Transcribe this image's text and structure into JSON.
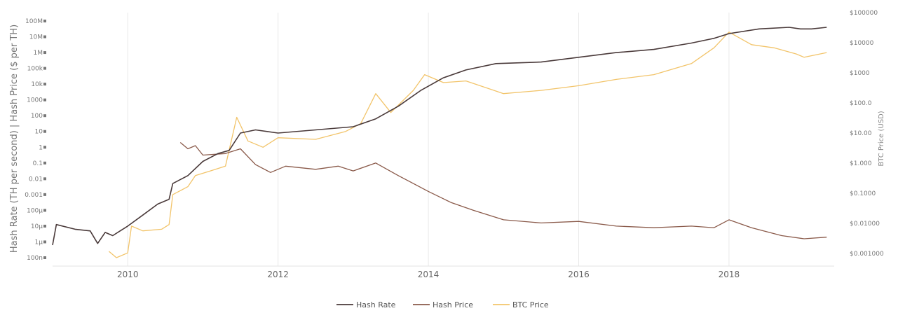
{
  "chart_data": {
    "type": "line",
    "xlabel": "",
    "ylabel_left": "Hash Rate (TH per second) | Hash Price ($ per TH)",
    "ylabel_right": "BTC Price (USD)",
    "x_ticks": [
      "2010",
      "2012",
      "2014",
      "2016",
      "2018"
    ],
    "x_range": [
      2009.0,
      2019.4
    ],
    "y_left": {
      "scale": "log",
      "range_exp": [
        -7,
        7
      ],
      "ticks": [
        {
          "label": "100n",
          "exp": -7
        },
        {
          "label": "1µ",
          "exp": -6
        },
        {
          "label": "10µ",
          "exp": -5
        },
        {
          "label": "100µ",
          "exp": -4
        },
        {
          "label": "0.001",
          "exp": -3
        },
        {
          "label": "0.01",
          "exp": -2
        },
        {
          "label": "0.1",
          "exp": -1
        },
        {
          "label": "1",
          "exp": 0
        },
        {
          "label": "10",
          "exp": 1
        },
        {
          "label": "100",
          "exp": 2
        },
        {
          "label": "1000",
          "exp": 3
        },
        {
          "label": "10k",
          "exp": 4
        },
        {
          "label": "100k",
          "exp": 5
        },
        {
          "label": "1M",
          "exp": 6
        },
        {
          "label": "10M",
          "exp": 7
        },
        {
          "label": "100M",
          "exp": 8
        }
      ]
    },
    "y_right": {
      "scale": "log",
      "ticks": [
        {
          "label": "$0.001000",
          "exp": -3
        },
        {
          "label": "$0.01000",
          "exp": -2
        },
        {
          "label": "$0.1000",
          "exp": -1
        },
        {
          "label": "$1.000",
          "exp": 0
        },
        {
          "label": "$10.00",
          "exp": 1
        },
        {
          "label": "$100.0",
          "exp": 2
        },
        {
          "label": "$1000",
          "exp": 3
        },
        {
          "label": "$10000",
          "exp": 4
        },
        {
          "label": "$100000",
          "exp": 5
        }
      ]
    },
    "series": [
      {
        "name": "Hash Rate",
        "axis": "left",
        "color": "#4a3a3a",
        "points": [
          [
            2009.0,
            -6.2
          ],
          [
            2009.05,
            -4.9
          ],
          [
            2009.3,
            -5.2
          ],
          [
            2009.5,
            -5.3
          ],
          [
            2009.6,
            -6.1
          ],
          [
            2009.7,
            -5.4
          ],
          [
            2009.8,
            -5.6
          ],
          [
            2009.9,
            -5.3
          ],
          [
            2010.0,
            -5.0
          ],
          [
            2010.2,
            -4.3
          ],
          [
            2010.4,
            -3.6
          ],
          [
            2010.55,
            -3.3
          ],
          [
            2010.6,
            -2.3
          ],
          [
            2010.8,
            -1.8
          ],
          [
            2011.0,
            -0.9
          ],
          [
            2011.2,
            -0.4
          ],
          [
            2011.35,
            -0.2
          ],
          [
            2011.5,
            0.9
          ],
          [
            2011.7,
            1.1
          ],
          [
            2012.0,
            0.9
          ],
          [
            2012.5,
            1.1
          ],
          [
            2013.0,
            1.3
          ],
          [
            2013.3,
            1.8
          ],
          [
            2013.6,
            2.6
          ],
          [
            2013.9,
            3.6
          ],
          [
            2014.2,
            4.4
          ],
          [
            2014.5,
            4.9
          ],
          [
            2014.9,
            5.3
          ],
          [
            2015.5,
            5.4
          ],
          [
            2016.0,
            5.7
          ],
          [
            2016.5,
            6.0
          ],
          [
            2017.0,
            6.2
          ],
          [
            2017.5,
            6.6
          ],
          [
            2017.8,
            6.9
          ],
          [
            2018.0,
            7.2
          ],
          [
            2018.4,
            7.5
          ],
          [
            2018.8,
            7.6
          ],
          [
            2018.95,
            7.5
          ],
          [
            2019.1,
            7.5
          ],
          [
            2019.3,
            7.6
          ]
        ]
      },
      {
        "name": "Hash Price",
        "axis": "left",
        "color": "#8a5a4a",
        "points": [
          [
            2010.7,
            0.3
          ],
          [
            2010.8,
            -0.1
          ],
          [
            2010.9,
            0.1
          ],
          [
            2011.0,
            -0.5
          ],
          [
            2011.3,
            -0.4
          ],
          [
            2011.5,
            -0.1
          ],
          [
            2011.7,
            -1.1
          ],
          [
            2011.9,
            -1.6
          ],
          [
            2012.1,
            -1.2
          ],
          [
            2012.5,
            -1.4
          ],
          [
            2012.8,
            -1.2
          ],
          [
            2013.0,
            -1.5
          ],
          [
            2013.3,
            -1.0
          ],
          [
            2013.6,
            -1.8
          ],
          [
            2013.8,
            -2.3
          ],
          [
            2014.0,
            -2.8
          ],
          [
            2014.3,
            -3.5
          ],
          [
            2014.6,
            -4.0
          ],
          [
            2015.0,
            -4.6
          ],
          [
            2015.5,
            -4.8
          ],
          [
            2016.0,
            -4.7
          ],
          [
            2016.5,
            -5.0
          ],
          [
            2017.0,
            -5.1
          ],
          [
            2017.5,
            -5.0
          ],
          [
            2017.8,
            -5.1
          ],
          [
            2018.0,
            -4.6
          ],
          [
            2018.3,
            -5.1
          ],
          [
            2018.7,
            -5.6
          ],
          [
            2019.0,
            -5.8
          ],
          [
            2019.3,
            -5.7
          ]
        ]
      },
      {
        "name": "BTC Price",
        "axis": "left",
        "color": "#f2c46a",
        "points": [
          [
            2009.75,
            -6.6
          ],
          [
            2009.85,
            -7.0
          ],
          [
            2010.0,
            -6.7
          ],
          [
            2010.05,
            -5.0
          ],
          [
            2010.2,
            -5.3
          ],
          [
            2010.45,
            -5.2
          ],
          [
            2010.55,
            -4.9
          ],
          [
            2010.6,
            -3.0
          ],
          [
            2010.8,
            -2.5
          ],
          [
            2010.9,
            -1.8
          ],
          [
            2011.1,
            -1.5
          ],
          [
            2011.3,
            -1.2
          ],
          [
            2011.45,
            1.9
          ],
          [
            2011.6,
            0.4
          ],
          [
            2011.8,
            0.0
          ],
          [
            2012.0,
            0.6
          ],
          [
            2012.5,
            0.5
          ],
          [
            2012.9,
            1.0
          ],
          [
            2013.1,
            1.5
          ],
          [
            2013.3,
            3.4
          ],
          [
            2013.5,
            2.2
          ],
          [
            2013.8,
            3.6
          ],
          [
            2013.95,
            4.6
          ],
          [
            2014.2,
            4.1
          ],
          [
            2014.5,
            4.2
          ],
          [
            2015.0,
            3.4
          ],
          [
            2015.5,
            3.6
          ],
          [
            2016.0,
            3.9
          ],
          [
            2016.5,
            4.3
          ],
          [
            2017.0,
            4.6
          ],
          [
            2017.5,
            5.3
          ],
          [
            2017.8,
            6.3
          ],
          [
            2018.0,
            7.3
          ],
          [
            2018.3,
            6.5
          ],
          [
            2018.6,
            6.3
          ],
          [
            2018.9,
            5.9
          ],
          [
            2019.0,
            5.7
          ],
          [
            2019.3,
            6.0
          ]
        ]
      }
    ],
    "legend": {
      "position": "bottom",
      "items": [
        "Hash Rate",
        "Hash Price",
        "BTC Price"
      ]
    },
    "grid": {
      "vertical": true,
      "horizontal": false
    }
  }
}
